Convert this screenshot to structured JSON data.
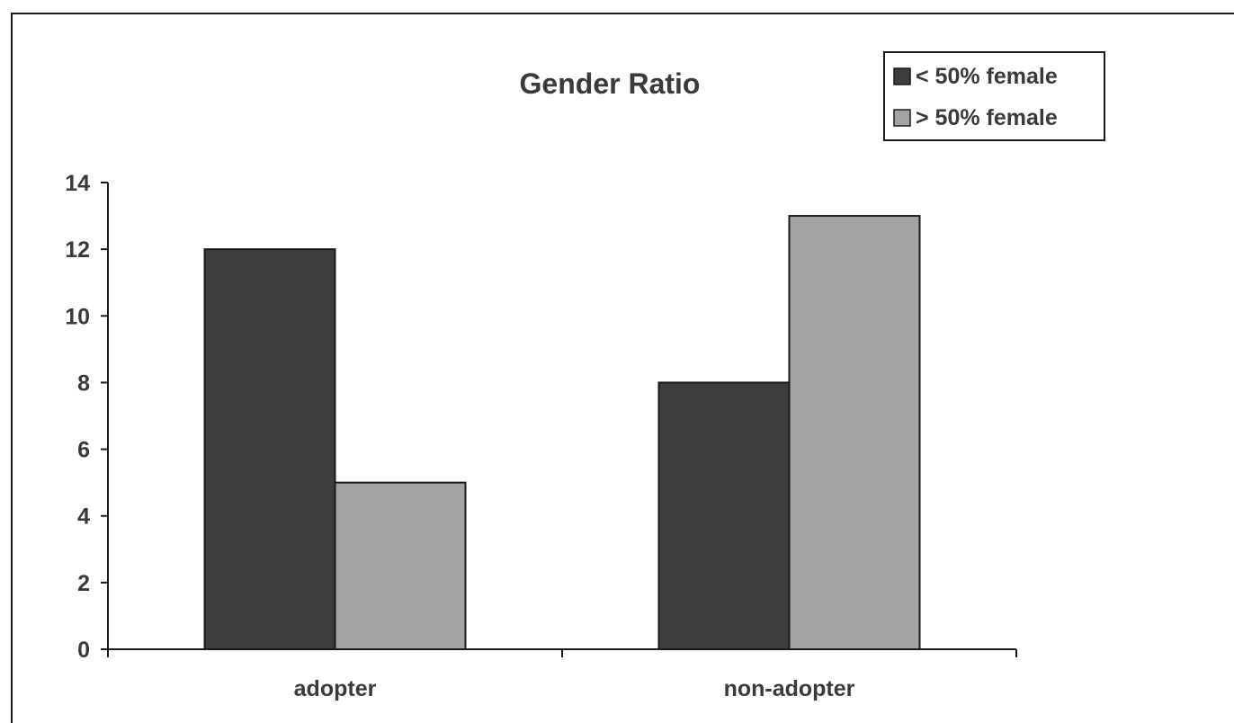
{
  "chart_data": {
    "type": "bar",
    "title": "Gender Ratio",
    "xlabel": "",
    "ylabel": "",
    "categories": [
      "adopter",
      "non-adopter"
    ],
    "series": [
      {
        "name": "< 50% female",
        "values": [
          12,
          8
        ],
        "color": "#3d3d3d"
      },
      {
        "name": "> 50% female",
        "values": [
          5,
          13
        ],
        "color": "#a3a3a3"
      }
    ],
    "ylim": [
      0,
      14
    ],
    "yticks": [
      0,
      2,
      4,
      6,
      8,
      10,
      12,
      14
    ],
    "grid": false,
    "legend": "top-right"
  }
}
